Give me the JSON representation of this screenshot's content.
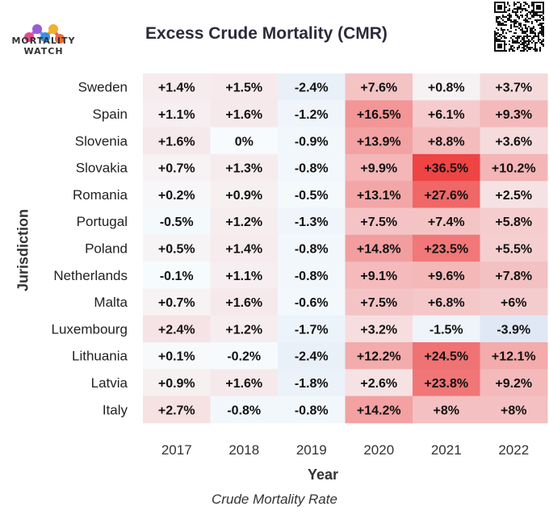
{
  "logo": {
    "line1": "MORTALITY",
    "line2": "WATCH"
  },
  "chart_data": {
    "type": "heatmap",
    "title": "Excess Crude Mortality (CMR)",
    "xlabel": "Year",
    "ylabel": "Jurisdiction",
    "caption": "Crude Mortality Rate",
    "x": [
      "2017",
      "2018",
      "2019",
      "2020",
      "2021",
      "2022"
    ],
    "y": [
      "Sweden",
      "Spain",
      "Slovenia",
      "Slovakia",
      "Romania",
      "Portugal",
      "Poland",
      "Netherlands",
      "Malta",
      "Luxembourg",
      "Lithuania",
      "Latvia",
      "Italy"
    ],
    "values": [
      [
        1.4,
        1.5,
        -2.4,
        7.6,
        0.8,
        3.7
      ],
      [
        1.1,
        1.6,
        -1.2,
        16.5,
        6.1,
        9.3
      ],
      [
        1.6,
        0,
        -0.9,
        13.9,
        8.8,
        3.6
      ],
      [
        0.7,
        1.3,
        -0.8,
        9.9,
        36.5,
        10.2
      ],
      [
        0.2,
        0.9,
        -0.5,
        13.1,
        27.6,
        2.5
      ],
      [
        -0.5,
        1.2,
        -1.3,
        7.5,
        7.4,
        5.8
      ],
      [
        0.5,
        1.4,
        -0.8,
        14.8,
        23.5,
        5.5
      ],
      [
        -0.1,
        1.1,
        -0.8,
        9.1,
        9.6,
        7.8
      ],
      [
        0.7,
        1.6,
        -0.6,
        7.5,
        6.8,
        6
      ],
      [
        2.4,
        1.2,
        -1.7,
        3.2,
        -1.5,
        -3.9
      ],
      [
        0.1,
        -0.2,
        -2.4,
        12.2,
        24.5,
        12.1
      ],
      [
        0.9,
        1.6,
        -1.8,
        2.6,
        23.8,
        9.2
      ],
      [
        2.7,
        -0.8,
        -0.8,
        14.2,
        8,
        8
      ]
    ],
    "labels": [
      [
        "+1.4%",
        "+1.5%",
        "-2.4%",
        "+7.6%",
        "+0.8%",
        "+3.7%"
      ],
      [
        "+1.1%",
        "+1.6%",
        "-1.2%",
        "+16.5%",
        "+6.1%",
        "+9.3%"
      ],
      [
        "+1.6%",
        "0%",
        "-0.9%",
        "+13.9%",
        "+8.8%",
        "+3.6%"
      ],
      [
        "+0.7%",
        "+1.3%",
        "-0.8%",
        "+9.9%",
        "+36.5%",
        "+10.2%"
      ],
      [
        "+0.2%",
        "+0.9%",
        "-0.5%",
        "+13.1%",
        "+27.6%",
        "+2.5%"
      ],
      [
        "-0.5%",
        "+1.2%",
        "-1.3%",
        "+7.5%",
        "+7.4%",
        "+5.8%"
      ],
      [
        "+0.5%",
        "+1.4%",
        "-0.8%",
        "+14.8%",
        "+23.5%",
        "+5.5%"
      ],
      [
        "-0.1%",
        "+1.1%",
        "-0.8%",
        "+9.1%",
        "+9.6%",
        "+7.8%"
      ],
      [
        "+0.7%",
        "+1.6%",
        "-0.6%",
        "+7.5%",
        "+6.8%",
        "+6%"
      ],
      [
        "+2.4%",
        "+1.2%",
        "-1.7%",
        "+3.2%",
        "-1.5%",
        "-3.9%"
      ],
      [
        "+0.1%",
        "-0.2%",
        "-2.4%",
        "+12.2%",
        "+24.5%",
        "+12.1%"
      ],
      [
        "+0.9%",
        "+1.6%",
        "-1.8%",
        "+2.6%",
        "+23.8%",
        "+9.2%"
      ],
      [
        "+2.7%",
        "-0.8%",
        "-0.8%",
        "+14.2%",
        "+8%",
        "+8%"
      ]
    ],
    "colors": {
      "neutral": "#f7fbfd",
      "high": "#ee4444",
      "low": "#dfe8f5"
    }
  }
}
